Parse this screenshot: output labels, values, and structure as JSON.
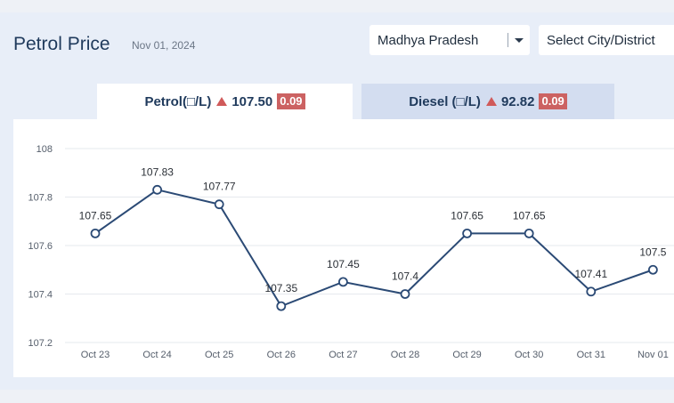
{
  "header": {
    "title": "Petrol Price",
    "date": "Nov 01, 2024"
  },
  "filters": {
    "state": "Madhya Pradesh",
    "city_placeholder": "Select City/District"
  },
  "tabs": [
    {
      "label": "Petrol(□/L)",
      "price": "107.50",
      "change": "0.09"
    },
    {
      "label": "Diesel (□/L)",
      "price": "92.82",
      "change": "0.09"
    }
  ],
  "colors": {
    "line": "#2b4a75",
    "accent_red": "#cc6262",
    "title": "#1f3a5c"
  },
  "chart_data": {
    "type": "line",
    "categories": [
      "Oct 23",
      "Oct 24",
      "Oct 25",
      "Oct 26",
      "Oct 27",
      "Oct 28",
      "Oct 29",
      "Oct 30",
      "Oct 31",
      "Nov 01"
    ],
    "values": [
      107.65,
      107.83,
      107.77,
      107.35,
      107.45,
      107.4,
      107.65,
      107.65,
      107.41,
      107.5
    ],
    "labels": [
      "107.65",
      "107.83",
      "107.77",
      "107.35",
      "107.45",
      "107.4",
      "107.65",
      "107.65",
      "107.41",
      "107.5"
    ],
    "yticks": [
      "107.2",
      "107.4",
      "107.6",
      "107.8",
      "108"
    ],
    "ylim": [
      107.2,
      108
    ],
    "grid": true,
    "title": "",
    "xlabel": "",
    "ylabel": ""
  }
}
